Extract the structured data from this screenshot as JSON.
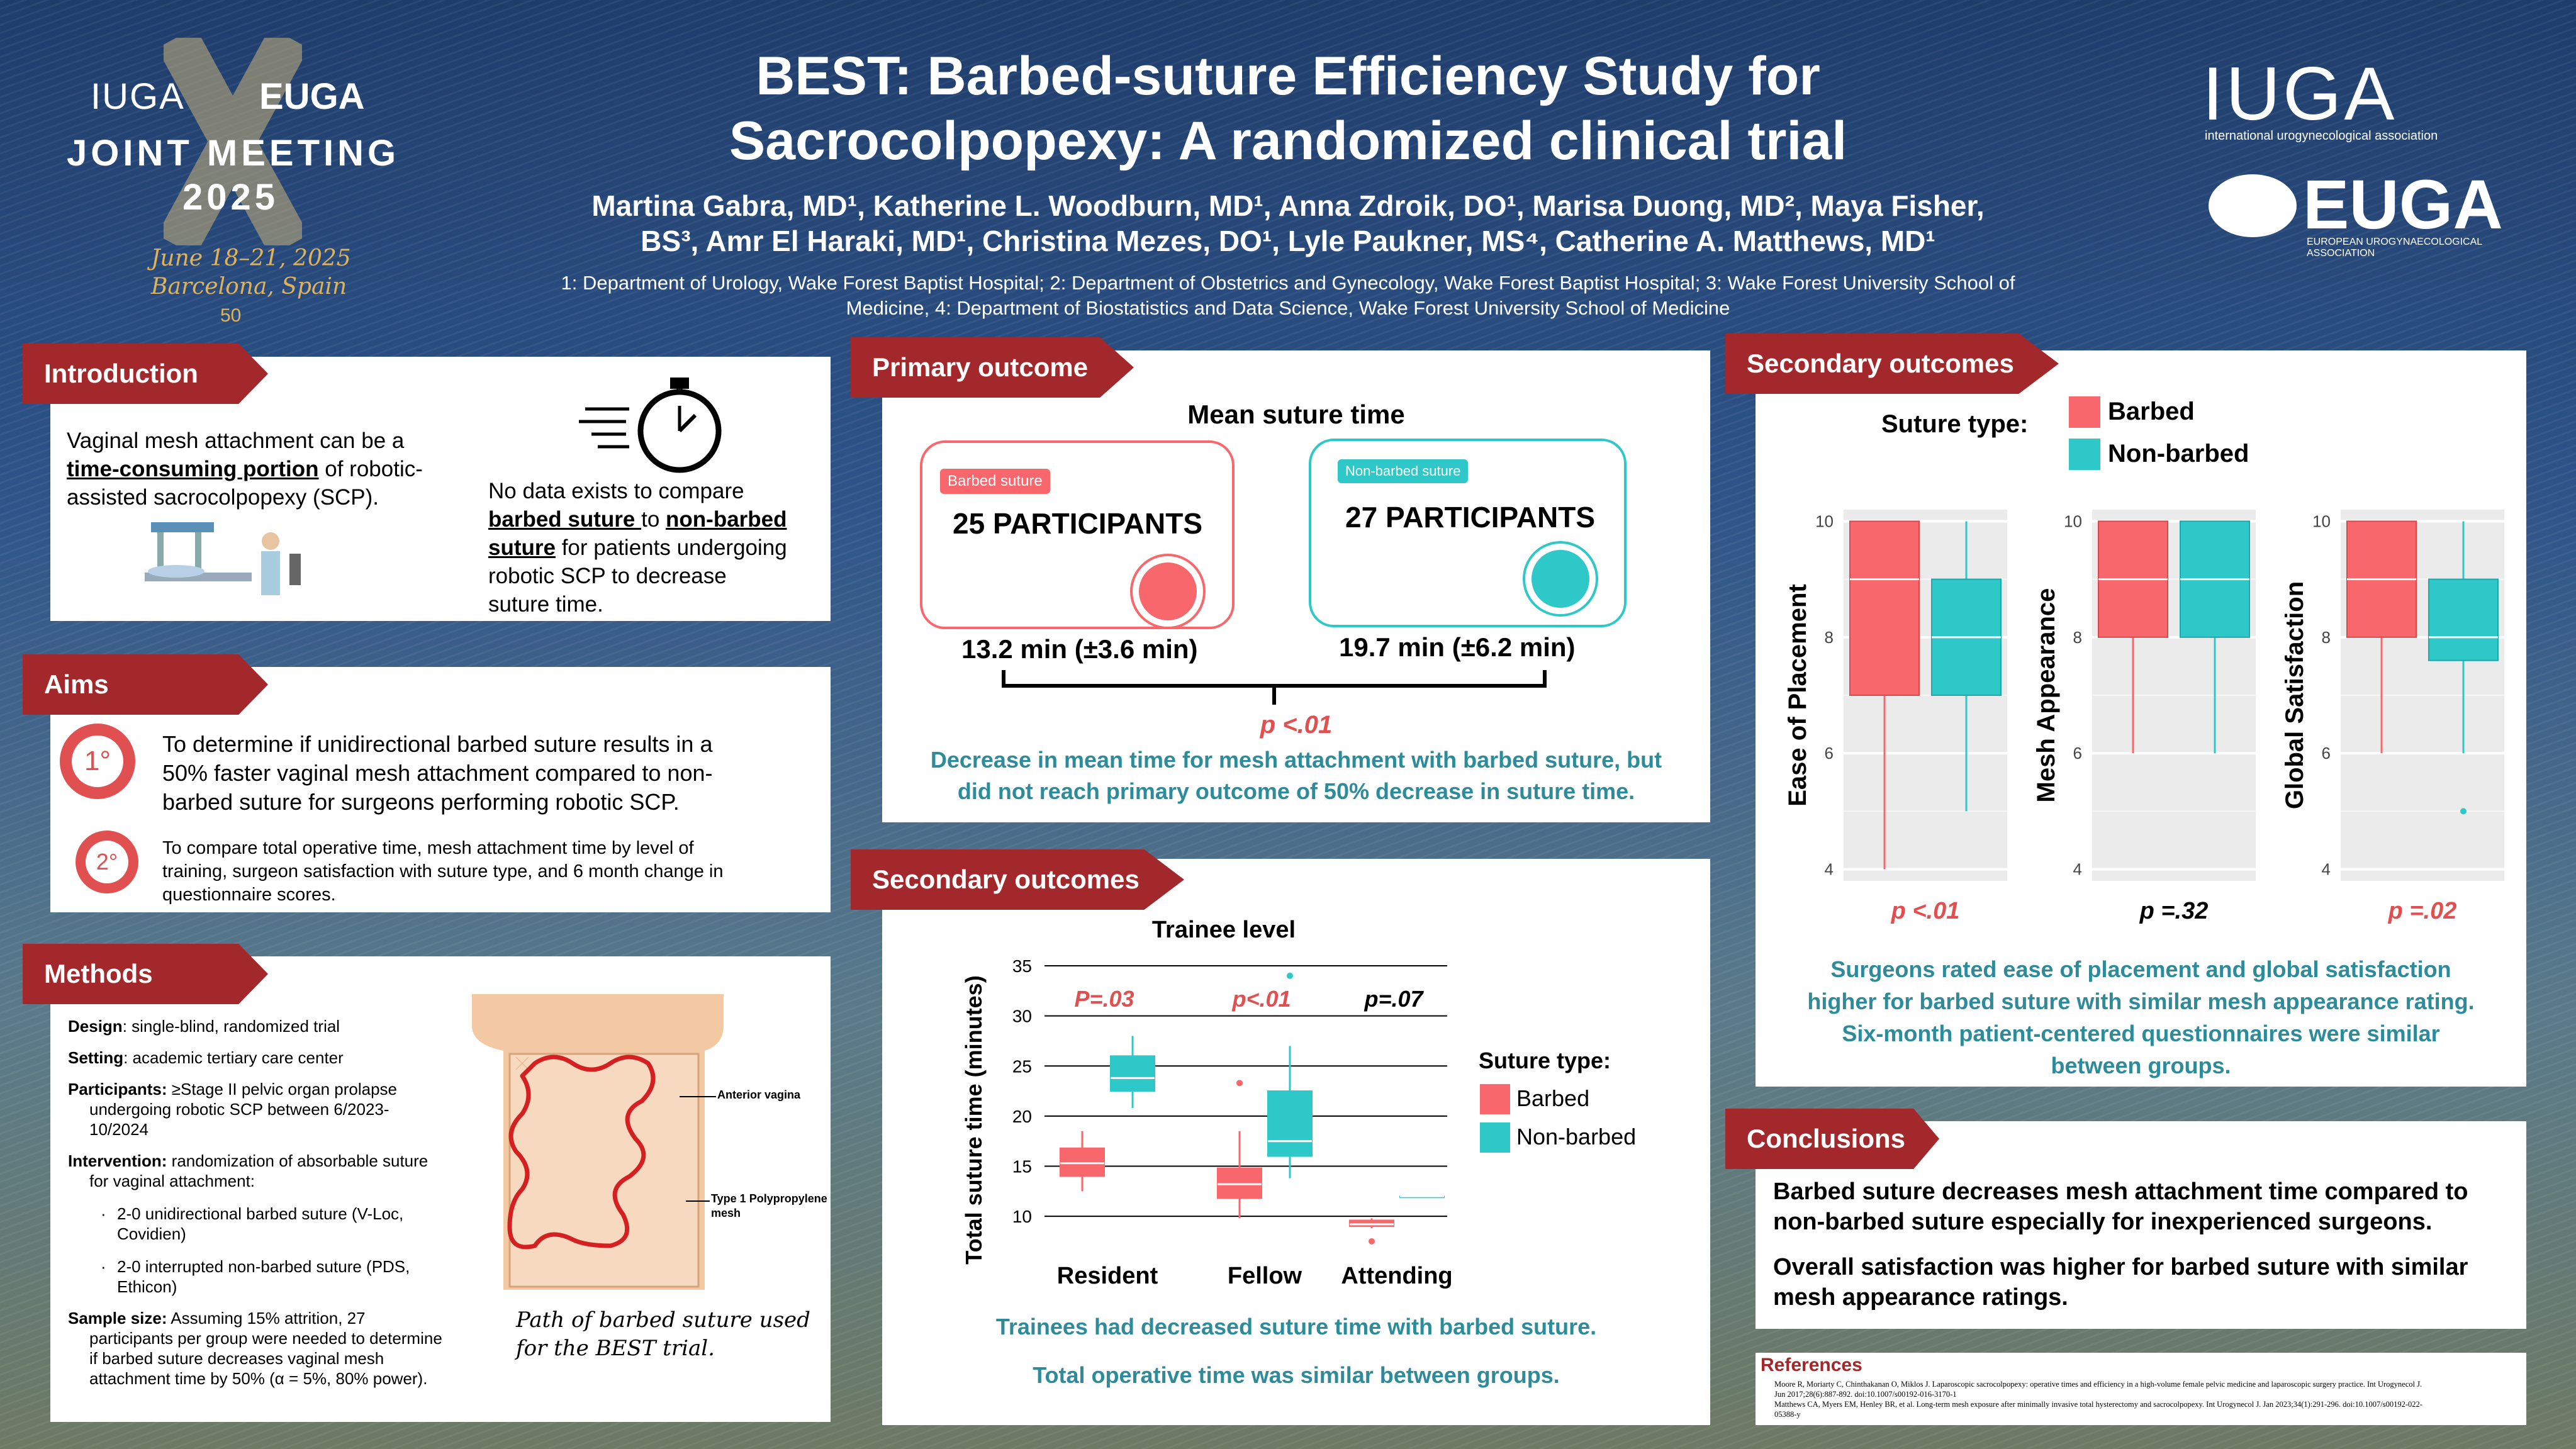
{
  "meeting_logo": {
    "left": "IUGA",
    "right": "EUGA",
    "line1": "JOINT MEETING",
    "line2": "2025",
    "dates": "June 18–21, 2025",
    "place": "Barcelona, Spain",
    "anniv": "50"
  },
  "title_line1": "BEST: Barbed-suture Efficiency Study for",
  "title_line2": "Sacrocolpopexy: A randomized clinical trial",
  "authors_line1": "Martina Gabra, MD¹, Katherine L. Woodburn, MD¹, Anna Zdroik, DO¹, Marisa Duong, MD², Maya Fisher,",
  "authors_line2": "BS³, Amr El Haraki, MD¹, Christina Mezes, DO¹, Lyle Paukner, MS⁴, Catherine A. Matthews, MD¹",
  "affil_line1": "1: Department of Urology, Wake Forest Baptist Hospital; 2: Department of Obstetrics and Gynecology, Wake Forest Baptist Hospital; 3: Wake Forest University School of",
  "affil_line2": "Medicine, 4: Department of Biostatistics and Data Science, Wake Forest University School of Medicine",
  "iuga_logo": {
    "name": "IUGA",
    "sub": "international urogynecological association"
  },
  "euga_logo": {
    "name": "EUGA",
    "sub": "EUROPEAN UROGYNAECOLOGICAL ASSOCIATION"
  },
  "intro": {
    "header": "Introduction",
    "p1_a": "Vaginal mesh attachment can be a",
    "p1_b": "time-consuming portion",
    "p1_c": " of robotic-",
    "p1_d": "assisted sacrocolpopexy (SCP).",
    "p2_a": "No data exists to compare",
    "p2_b": "barbed suture ",
    "p2_c": "to ",
    "p2_d": "non-barbed",
    "p2_e": "suture",
    "p2_f": " for patients undergoing",
    "p2_g": "robotic SCP to decrease",
    "p2_h": "suture time."
  },
  "aims": {
    "header": "Aims",
    "n1": "1°",
    "n2": "2°",
    "a1_l1": "To determine if unidirectional barbed suture results in a",
    "a1_l2": "50% faster vaginal mesh attachment compared to non-",
    "a1_l3": "barbed suture for surgeons performing robotic SCP.",
    "a2_l1": "To compare total operative time, mesh attachment time by level of",
    "a2_l2": "training, surgeon satisfaction with suture type, and 6 month change in",
    "a2_l3": "questionnaire scores."
  },
  "methods": {
    "header": "Methods",
    "design_k": "Design",
    "design_v": ": single-blind, randomized trial",
    "setting_k": "Setting",
    "setting_v": ": academic tertiary care center",
    "part_k": "Participants:",
    "part_v1": " ≥Stage II pelvic organ prolapse",
    "part_v2": "undergoing robotic SCP between 6/2023-",
    "part_v3": "10/2024",
    "int_k": "Intervention:",
    "int_v1": " randomization of absorbable suture",
    "int_v2": "for vaginal attachment:",
    "b1_l1": "2-0 unidirectional barbed suture (V-Loc,",
    "b1_l2": "Covidien)",
    "b2_l1": "2-0 interrupted non-barbed suture (PDS,",
    "b2_l2": "Ethicon)",
    "ss_k": "Sample size:",
    "ss_v1": " Assuming 15% attrition, 27",
    "ss_v2": "participants per group were needed to determine",
    "ss_v3": "if barbed suture decreases vaginal mesh",
    "ss_v4": "attachment time by 50% (α = 5%, 80% power).",
    "fig_label1": "Anterior vagina",
    "fig_label2a": "Type 1 Polypropylene",
    "fig_label2b": "mesh",
    "caption1": "Path of barbed suture used",
    "caption2": "for the BEST trial."
  },
  "primary": {
    "header": "Primary outcome",
    "title": "Mean suture time",
    "barbed_tag": "Barbed suture",
    "barbed_n": "25 PARTICIPANTS",
    "barbed_time": "13.2 min (±3.6 min)",
    "nonbarbed_tag": "Non-barbed suture",
    "nonbarbed_n": "27 PARTICIPANTS",
    "nonbarbed_time": "19.7 min  (±6.2 min)",
    "p": "p <.01",
    "concl1": "Decrease in mean time for mesh attachment with barbed suture, but",
    "concl2": "did not reach primary outcome of 50% decrease in suture time."
  },
  "secondary_mid": {
    "header": "Secondary outcomes",
    "chart_title": "Trainee level",
    "ylabel": "Total suture time (minutes)",
    "legend_title": "Suture type:",
    "legend_barbed": "Barbed",
    "legend_nonbarbed": "Non-barbed",
    "p_resident": "P=.03",
    "p_fellow": "p<.01",
    "p_attending": "p=.07",
    "concl1": "Trainees had decreased suture time with barbed suture.",
    "concl2": "Total operative time was similar between groups."
  },
  "secondary_right": {
    "header": "Secondary outcomes",
    "legend_title": "Suture type:",
    "legend_barbed": "Barbed",
    "legend_nonbarbed": "Non-barbed",
    "concl1": "Surgeons rated ease of placement and global satisfaction",
    "concl2": "higher for barbed suture with similar mesh appearance rating.",
    "concl3": "Six-month patient-centered questionnaires were similar",
    "concl4": "between groups."
  },
  "conclusions": {
    "header": "Conclusions",
    "c1_l1": "Barbed suture decreases mesh attachment time compared to",
    "c1_l2": "non-barbed suture especially for inexperienced surgeons.",
    "c2_l1": "Overall satisfaction was higher for barbed suture with similar",
    "c2_l2": "mesh appearance ratings."
  },
  "references": {
    "header": "References",
    "r1_l1": "Moore R, Moriarty C, Chinthakanan O, Miklos J. Laparoscopic sacrocolpopexy: operative times and efficiency in a high-volume female pelvic medicine and laparoscopic surgery practice. Int Urogynecol J.",
    "r1_l2": "Jun 2017;28(6):887-892. doi:10.1007/s00192-016-3170-1",
    "r2_l1": "Matthews CA, Myers EM, Henley BR, et al. Long-term mesh exposure after minimally invasive total hysterectomy and sacrocolpopexy. Int Urogynecol J. Jan 2023;34(1):291-296. doi:10.1007/s00192-022-",
    "r2_l2": "05388-y"
  },
  "colors": {
    "barbed": "#f8676b",
    "nonbarbed": "#2ec8c9",
    "header_red": "#a3282b",
    "teal_text": "#2e8b9a",
    "red_text": "#e05050"
  },
  "chart_data": [
    {
      "type": "boxplot",
      "title": "Trainee level",
      "ylabel": "Total suture time (minutes)",
      "ylim": [
        8,
        35
      ],
      "yticks": [
        10,
        15,
        20,
        25,
        30,
        35
      ],
      "categories": [
        "Resident",
        "Fellow",
        "Attending"
      ],
      "series": [
        {
          "name": "Barbed",
          "boxes": [
            {
              "min": 12.5,
              "q1": 14,
              "median": 15.3,
              "q3": 16.8,
              "max": 18.5,
              "outliers": []
            },
            {
              "min": 9.8,
              "q1": 11.8,
              "median": 13.2,
              "q3": 14.8,
              "max": 18.5,
              "outliers": [
                23.3
              ]
            },
            {
              "min": 8.8,
              "q1": 9,
              "median": 9.2,
              "q3": 9.6,
              "max": 9.8,
              "outliers": [
                7.5
              ]
            }
          ]
        },
        {
          "name": "Non-barbed",
          "boxes": [
            {
              "min": 20.8,
              "q1": 22.5,
              "median": 23.8,
              "q3": 26,
              "max": 28,
              "outliers": []
            },
            {
              "min": 13.8,
              "q1": 16,
              "median": 17.5,
              "q3": 22.5,
              "max": 27,
              "outliers": [
                34
              ]
            },
            {
              "min": 12,
              "q1": 12,
              "median": 12,
              "q3": 12,
              "max": 12,
              "outliers": []
            }
          ]
        }
      ],
      "p_values": [
        "P=.03",
        "p<.01",
        "p=.07"
      ]
    },
    {
      "type": "boxplot",
      "ylabel": "Ease of Placement",
      "ylim": [
        3.8,
        10.2
      ],
      "yticks": [
        4,
        6,
        8,
        10
      ],
      "categories": [
        "Barbed",
        "Non-barbed"
      ],
      "boxes": [
        {
          "min": 4,
          "q1": 7,
          "median": 9,
          "q3": 10,
          "max": 10,
          "outliers": []
        },
        {
          "min": 5,
          "q1": 7,
          "median": 8,
          "q3": 9,
          "max": 10,
          "outliers": []
        }
      ],
      "p_value": "p <.01"
    },
    {
      "type": "boxplot",
      "ylabel": "Mesh Appearance",
      "ylim": [
        3.8,
        10.2
      ],
      "yticks": [
        4,
        6,
        8,
        10
      ],
      "categories": [
        "Barbed",
        "Non-barbed"
      ],
      "boxes": [
        {
          "min": 6,
          "q1": 8,
          "median": 9,
          "q3": 10,
          "max": 10,
          "outliers": []
        },
        {
          "min": 6,
          "q1": 8,
          "median": 9,
          "q3": 10,
          "max": 10,
          "outliers": []
        }
      ],
      "p_value": "p =.32"
    },
    {
      "type": "boxplot",
      "ylabel": "Global Satisfaction",
      "ylim": [
        3.8,
        10.2
      ],
      "yticks": [
        4,
        6,
        8,
        10
      ],
      "categories": [
        "Barbed",
        "Non-barbed"
      ],
      "boxes": [
        {
          "min": 6,
          "q1": 8,
          "median": 9,
          "q3": 10,
          "max": 10,
          "outliers": []
        },
        {
          "min": 6,
          "q1": 7.6,
          "median": 8,
          "q3": 9,
          "max": 10,
          "outliers": [
            5
          ]
        }
      ],
      "p_value": "p =.02"
    }
  ]
}
